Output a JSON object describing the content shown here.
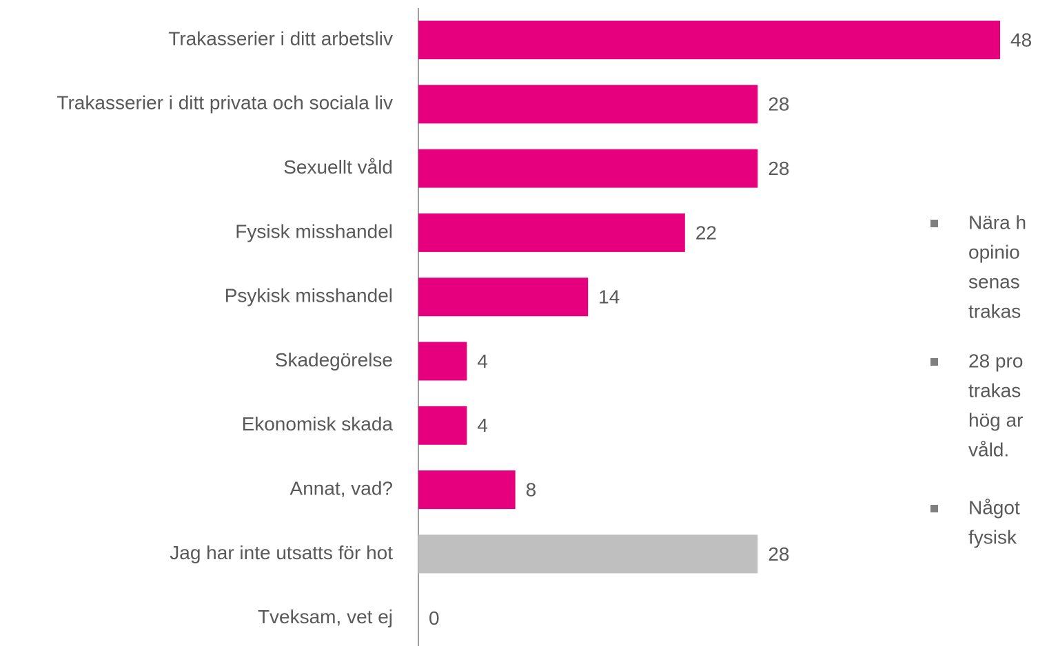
{
  "chart_data": {
    "type": "bar",
    "orientation": "horizontal",
    "categories": [
      "Trakasserier i ditt arbetsliv",
      "Trakasserier i ditt privata och sociala liv",
      "Sexuellt våld",
      "Fysisk misshandel",
      "Psykisk misshandel",
      "Skadegörelse",
      "Ekonomisk skada",
      "Annat, vad?",
      "Jag har inte utsatts för hot",
      "Tveksam, vet ej"
    ],
    "values": [
      48,
      28,
      28,
      22,
      14,
      4,
      4,
      8,
      28,
      0
    ],
    "colors": [
      "#e6007e",
      "#e6007e",
      "#e6007e",
      "#e6007e",
      "#e6007e",
      "#e6007e",
      "#e6007e",
      "#e6007e",
      "#bfbfbf",
      "#bfbfbf"
    ],
    "xlim": [
      0,
      48
    ],
    "annotations": [
      [
        "Nära h",
        "opinio",
        "senas",
        "trakas"
      ],
      [
        "28 pro",
        "trakas",
        "hög ar",
        "våld."
      ],
      [
        "Något",
        "fysisk"
      ]
    ]
  }
}
